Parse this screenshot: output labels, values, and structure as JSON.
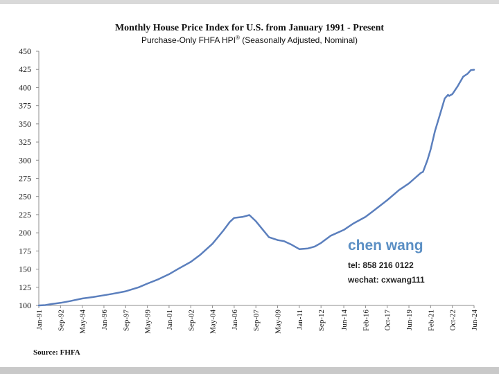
{
  "chart_data": {
    "type": "line",
    "title": "Monthly House Price Index for U.S. from January 1991 - Present",
    "subtitle_main": "Purchase-Only FHFA HPI",
    "subtitle_sup": "®",
    "subtitle_rest": " (Seasonally Adjusted, Nominal)",
    "ylim": [
      100,
      450
    ],
    "y_ticks": [
      100,
      125,
      150,
      175,
      200,
      225,
      250,
      275,
      300,
      325,
      350,
      375,
      400,
      425,
      450
    ],
    "x_range": [
      "1991-01",
      "2024-06"
    ],
    "x_ticks": [
      {
        "label": "Jan-91",
        "date": "1991-01"
      },
      {
        "label": "Sep-92",
        "date": "1992-09"
      },
      {
        "label": "May-94",
        "date": "1994-05"
      },
      {
        "label": "Jan-96",
        "date": "1996-01"
      },
      {
        "label": "Sep-97",
        "date": "1997-09"
      },
      {
        "label": "May-99",
        "date": "1999-05"
      },
      {
        "label": "Jan-01",
        "date": "2001-01"
      },
      {
        "label": "Sep-02",
        "date": "2002-09"
      },
      {
        "label": "May-04",
        "date": "2004-05"
      },
      {
        "label": "Jan-06",
        "date": "2006-01"
      },
      {
        "label": "Sep-07",
        "date": "2007-09"
      },
      {
        "label": "May-09",
        "date": "2009-05"
      },
      {
        "label": "Jan-11",
        "date": "2011-01"
      },
      {
        "label": "Sep-12",
        "date": "2012-09"
      },
      {
        "label": "Jun-14",
        "date": "2014-06"
      },
      {
        "label": "Feb-16",
        "date": "2016-02"
      },
      {
        "label": "Oct-17",
        "date": "2017-10"
      },
      {
        "label": "Jun-19",
        "date": "2019-06"
      },
      {
        "label": "Feb-21",
        "date": "2021-02"
      },
      {
        "label": "Oct-22",
        "date": "2022-10"
      },
      {
        "label": "Jun-24",
        "date": "2024-06"
      }
    ],
    "grid": false,
    "series": [
      {
        "color": "#5b7fbd",
        "points": [
          [
            "1991-01",
            100
          ],
          [
            "1991-07",
            100.5
          ],
          [
            "1992-01",
            102
          ],
          [
            "1992-09",
            103.5
          ],
          [
            "1993-06",
            106
          ],
          [
            "1994-05",
            109.5
          ],
          [
            "1995-03",
            111.5
          ],
          [
            "1996-01",
            114
          ],
          [
            "1996-09",
            116
          ],
          [
            "1997-09",
            119.5
          ],
          [
            "1998-09",
            125
          ],
          [
            "1999-05",
            130
          ],
          [
            "2000-03",
            136
          ],
          [
            "2001-01",
            143
          ],
          [
            "2001-09",
            150
          ],
          [
            "2002-09",
            160
          ],
          [
            "2003-06",
            170
          ],
          [
            "2004-05",
            185
          ],
          [
            "2005-03",
            203
          ],
          [
            "2005-09",
            215
          ],
          [
            "2006-01",
            220.5
          ],
          [
            "2006-09",
            222
          ],
          [
            "2007-03",
            224.5
          ],
          [
            "2007-09",
            216
          ],
          [
            "2008-03",
            205
          ],
          [
            "2008-09",
            194
          ],
          [
            "2009-05",
            190
          ],
          [
            "2009-11",
            188.5
          ],
          [
            "2010-06",
            183.5
          ],
          [
            "2011-01",
            177.5
          ],
          [
            "2011-09",
            178.5
          ],
          [
            "2012-03",
            181
          ],
          [
            "2012-09",
            186
          ],
          [
            "2013-06",
            196
          ],
          [
            "2014-06",
            204
          ],
          [
            "2015-03",
            213
          ],
          [
            "2016-02",
            222
          ],
          [
            "2016-10",
            231
          ],
          [
            "2017-10",
            245
          ],
          [
            "2018-09",
            259
          ],
          [
            "2019-06",
            268
          ],
          [
            "2019-12",
            276
          ],
          [
            "2020-05",
            282.5
          ],
          [
            "2020-07",
            284
          ],
          [
            "2020-11",
            300
          ],
          [
            "2021-02",
            315
          ],
          [
            "2021-06",
            340
          ],
          [
            "2021-11",
            365
          ],
          [
            "2022-03",
            385
          ],
          [
            "2022-06",
            390
          ],
          [
            "2022-07",
            388.5
          ],
          [
            "2022-10",
            391
          ],
          [
            "2023-03",
            402
          ],
          [
            "2023-08",
            415
          ],
          [
            "2023-12",
            419
          ],
          [
            "2024-03",
            424
          ],
          [
            "2024-06",
            424.5
          ]
        ]
      }
    ]
  },
  "source_label": "Source: FHFA",
  "watermark": {
    "name": "chen wang",
    "tel": "tel: 858 216 0122",
    "wechat": "wechat: cxwang111"
  }
}
